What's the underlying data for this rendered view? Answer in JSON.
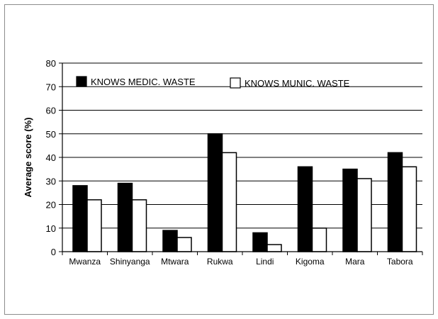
{
  "chart_data": {
    "type": "bar",
    "title": "",
    "xlabel": "",
    "ylabel": "Average score (%)",
    "ylim": [
      0,
      80
    ],
    "yticks": [
      0,
      10,
      20,
      30,
      40,
      50,
      60,
      70,
      80
    ],
    "grid": true,
    "legend_position": "top",
    "categories": [
      "Mwanza",
      "Shinyanga",
      "Mtwara",
      "Rukwa",
      "Lindi",
      "Kigoma",
      "Mara",
      "Tabora"
    ],
    "series": [
      {
        "name": "KNOWS MEDIC. WASTE",
        "color": "#000000",
        "values": [
          28,
          29,
          9,
          50,
          8,
          36,
          35,
          42
        ]
      },
      {
        "name": "KNOWS MUNIC. WASTE",
        "color": "#ffffff",
        "values": [
          22,
          22,
          6,
          42,
          3,
          10,
          31,
          36
        ]
      }
    ]
  }
}
